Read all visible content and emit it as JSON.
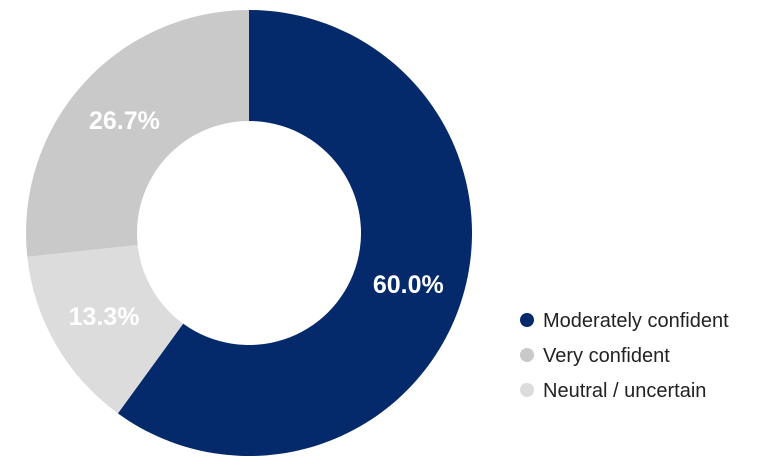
{
  "chart_data": {
    "type": "pie",
    "variant": "donut",
    "title": "",
    "slices": [
      {
        "name": "Moderately confident",
        "value": 60.0,
        "label": "60.0%",
        "color": "#042a6b"
      },
      {
        "name": "Neutral / uncertain",
        "value": 13.3,
        "label": "13.3%",
        "color": "#dcdcdc"
      },
      {
        "name": "Very confident",
        "value": 26.7,
        "label": "26.7%",
        "color": "#c9c9c9"
      }
    ],
    "legend": {
      "placement": "bottom-right",
      "entries": [
        {
          "name": "Moderately confident",
          "color": "#042a6b"
        },
        {
          "name": "Very confident",
          "color": "#c9c9c9"
        },
        {
          "name": "Neutral / uncertain",
          "color": "#dcdcdc"
        }
      ]
    }
  }
}
